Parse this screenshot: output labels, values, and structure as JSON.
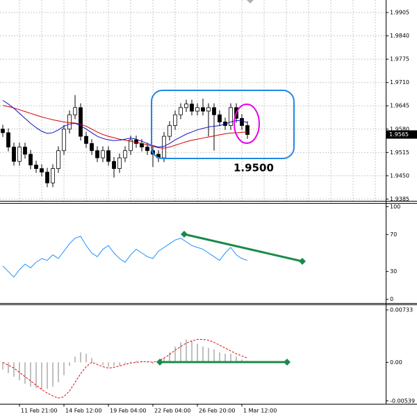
{
  "chart_data": [
    {
      "type": "ohlc",
      "ylim": [
        1.938,
        1.994
      ],
      "yticks": [
        1.9905,
        {
          "value": 1.984,
          "label": "1.9840"
        },
        1.9775,
        {
          "value": 1.971,
          "label": "1.9710"
        },
        1.9645,
        {
          "value": 1.958,
          "label": "1.9580"
        },
        1.9515,
        {
          "value": 1.945,
          "label": "1.9450"
        },
        1.9385
      ],
      "grid": true,
      "annotation": "1.9500",
      "annotation_color": "#1a8a4a",
      "open": [
        1.958,
        1.957,
        1.953,
        1.949,
        1.953,
        1.951,
        1.948,
        1.947,
        1.946,
        1.943,
        1.947,
        1.952,
        1.958,
        1.962,
        1.964,
        1.956,
        1.954,
        1.952,
        1.95,
        1.952,
        1.949,
        1.947,
        1.95,
        1.952,
        1.955,
        1.954,
        1.953,
        1.952,
        1.951,
        1.95,
        1.956,
        1.959,
        1.962,
        1.964,
        1.965,
        1.963,
        1.964,
        1.963,
        1.964,
        1.962,
        1.96,
        1.959,
        1.964,
        1.961,
        1.959
      ],
      "high": [
        1.9592,
        1.9582,
        1.9542,
        1.9542,
        1.9542,
        1.9522,
        1.9492,
        1.9482,
        1.9472,
        1.9482,
        1.9532,
        1.9592,
        1.9632,
        1.9675,
        1.9652,
        1.9572,
        1.9552,
        1.9532,
        1.9532,
        1.9532,
        1.9502,
        1.9512,
        1.9532,
        1.9562,
        1.9562,
        1.9552,
        1.9542,
        1.9532,
        1.9522,
        1.9572,
        1.9602,
        1.9632,
        1.9652,
        1.9662,
        1.9662,
        1.9652,
        1.9665,
        1.9652,
        1.9652,
        1.9632,
        1.9612,
        1.9652,
        1.9652,
        1.9622,
        1.9602
      ],
      "low": [
        1.9558,
        1.9518,
        1.9478,
        1.9478,
        1.9498,
        1.9468,
        1.9458,
        1.9448,
        1.9418,
        1.9418,
        1.9458,
        1.9508,
        1.9568,
        1.9608,
        1.9548,
        1.9528,
        1.9508,
        1.9488,
        1.9488,
        1.9478,
        1.9445,
        1.9458,
        1.9488,
        1.9508,
        1.9528,
        1.9518,
        1.9508,
        1.9475,
        1.9488,
        1.9488,
        1.9548,
        1.9578,
        1.9608,
        1.9628,
        1.9618,
        1.9618,
        1.9618,
        1.956,
        1.952,
        1.9588,
        1.9578,
        1.9578,
        1.9598,
        1.9578,
        1.9553
      ],
      "close": [
        1.957,
        1.953,
        1.949,
        1.953,
        1.951,
        1.948,
        1.947,
        1.946,
        1.943,
        1.947,
        1.952,
        1.958,
        1.962,
        1.964,
        1.956,
        1.954,
        1.952,
        1.95,
        1.952,
        1.949,
        1.947,
        1.95,
        1.952,
        1.955,
        1.954,
        1.953,
        1.952,
        1.951,
        1.95,
        1.956,
        1.959,
        1.962,
        1.964,
        1.965,
        1.963,
        1.964,
        1.963,
        1.964,
        1.962,
        1.96,
        1.959,
        1.964,
        1.961,
        1.959,
        1.9565
      ],
      "series": [
        {
          "color": "#d40000",
          "values": [
            1.9646,
            1.9643,
            1.9639,
            1.9634,
            1.9629,
            1.9624,
            1.9619,
            1.9614,
            1.961,
            1.9606,
            1.9603,
            1.96,
            1.9598,
            1.9597,
            1.9594,
            1.9588,
            1.958,
            1.9572,
            1.9565,
            1.956,
            1.9556,
            1.9552,
            1.9549,
            1.9546,
            1.9543,
            1.954,
            1.9536,
            1.9532,
            1.9528,
            1.9527,
            1.953,
            1.9535,
            1.954,
            1.9545,
            1.9549,
            1.9552,
            1.9555,
            1.9558,
            1.9561,
            1.9564,
            1.9567,
            1.9569,
            1.957,
            1.9571,
            1.9572
          ]
        },
        {
          "color": "#1010c8",
          "values": [
            1.966,
            1.965,
            1.9638,
            1.9624,
            1.961,
            1.9596,
            1.9584,
            1.9574,
            1.9568,
            1.957,
            1.9578,
            1.9588,
            1.9594,
            1.9596,
            1.959,
            1.958,
            1.957,
            1.956,
            1.9554,
            1.955,
            1.9548,
            1.9549,
            1.9552,
            1.9555,
            1.9552,
            1.9546,
            1.954,
            1.9534,
            1.953,
            1.9532,
            1.954,
            1.955,
            1.9558,
            1.9566,
            1.9572,
            1.9578,
            1.9582,
            1.9586,
            1.9588,
            1.959,
            1.9594,
            1.96,
            1.9604,
            1.9603,
            1.9598
          ]
        }
      ]
    },
    {
      "type": "line",
      "ylim": [
        -4,
        104
      ],
      "yticks": [
        100,
        70,
        30,
        0
      ],
      "grid": false,
      "series": [
        {
          "color": "#1e90ff",
          "values": [
            36,
            30,
            24,
            32,
            38,
            34,
            40,
            44,
            42,
            48,
            44,
            52,
            60,
            66,
            68,
            58,
            50,
            46,
            54,
            58,
            50,
            44,
            40,
            48,
            54,
            50,
            46,
            44,
            52,
            56,
            60,
            64,
            66,
            62,
            58,
            56,
            54,
            50,
            46,
            42,
            50,
            56,
            48,
            44,
            42
          ]
        }
      ]
    },
    {
      "type": "macd",
      "ylim": [
        -0.0057,
        0.0081
      ],
      "yticks": [
        0.00733,
        {
          "value": 0,
          "label": "0.00"
        },
        -0.00539
      ],
      "grid": false,
      "categories": [
        null,
        null,
        null,
        "11 Feb 21:00",
        null,
        null,
        null,
        null,
        null,
        null,
        null,
        "14 Feb 12:00",
        null,
        null,
        null,
        null,
        null,
        null,
        null,
        "19 Feb 04:00",
        null,
        null,
        null,
        null,
        null,
        null,
        null,
        "22 Feb 04:00",
        null,
        null,
        null,
        null,
        null,
        null,
        null,
        "26 Feb 20:00",
        null,
        null,
        null,
        null,
        null,
        null,
        null,
        "1 Mar 12:00",
        null
      ],
      "histogram": {
        "color": "#c0c0c0",
        "values": [
          -0.001,
          -0.0015,
          -0.002,
          -0.0025,
          -0.003,
          -0.0034,
          -0.0036,
          -0.0038,
          -0.0037,
          -0.0034,
          -0.0028,
          -0.0018,
          -0.0005,
          0.0008,
          0.0014,
          0.0012,
          0.0006,
          0,
          -0.0004,
          -0.0006,
          -0.0005,
          -0.0004,
          -0.0002,
          0.0001,
          0.0002,
          0.0001,
          -0.0001,
          -0.0002,
          0,
          0.0006,
          0.0014,
          0.0022,
          0.0028,
          0.0032,
          0.003,
          0.0026,
          0.0022,
          0.002,
          0.0018,
          0.0014,
          0.0012,
          0.0012,
          0.0008,
          0.0004,
          0.0002
        ]
      },
      "signal": {
        "color": "#e00000",
        "values": [
          0,
          -0.0004,
          -0.0008,
          -0.0014,
          -0.002,
          -0.0026,
          -0.0032,
          -0.0038,
          -0.0043,
          -0.0047,
          -0.005,
          -0.0048,
          -0.004,
          -0.0028,
          -0.0016,
          -0.0006,
          0,
          -0.0003,
          -0.0006,
          -0.0008,
          -0.0007,
          -0.0005,
          -0.0003,
          -0.0001,
          0,
          0.0001,
          0.0001,
          0,
          0.0002,
          0.0006,
          0.0011,
          0.0017,
          0.0022,
          0.0027,
          0.003,
          0.0032,
          0.0032,
          0.0031,
          0.0028,
          0.0024,
          0.002,
          0.0016,
          0.0012,
          0.0009,
          0.0006
        ]
      }
    }
  ]
}
